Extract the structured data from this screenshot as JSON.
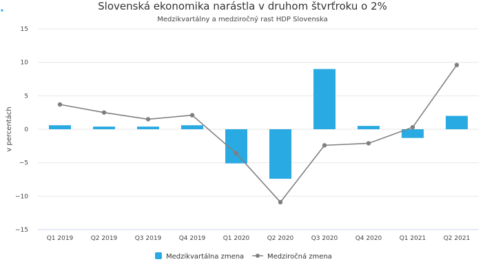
{
  "colors": {
    "bars": "#29aae2",
    "line": "#7f7f7f",
    "grid": "#e6e6e6",
    "axis": "#ccd6eb"
  },
  "chart_data": {
    "type": "bar",
    "title": "Slovenská ekonomika narástla v druhom štvrťroku o 2%",
    "subtitle": "Medzikvartálny a medziročný rast HDP Slovenska",
    "xlabel": "",
    "ylabel": "v percentách",
    "ylim": [
      -15,
      15
    ],
    "yticks": [
      15,
      10,
      5,
      0,
      -5,
      -10,
      -15
    ],
    "ytick_labels": [
      "15",
      "10",
      "5",
      "0",
      "−5",
      "−10",
      "−15"
    ],
    "grid": true,
    "legend_position": "bottom",
    "categories": [
      "Q1 2019",
      "Q2 2019",
      "Q3 2019",
      "Q4 2019",
      "Q1 2020",
      "Q2 2020",
      "Q3 2020",
      "Q4 2020",
      "Q1 2021",
      "Q2 2021"
    ],
    "series": [
      {
        "name": "Medzikvartálna zmena",
        "type": "bar",
        "values": [
          0.6,
          0.4,
          0.4,
          0.6,
          -5.1,
          -7.4,
          9.0,
          0.5,
          -1.3,
          2.0
        ]
      },
      {
        "name": "Medziročná zmena",
        "type": "line",
        "values": [
          3.7,
          2.5,
          1.5,
          2.1,
          -3.6,
          -10.9,
          -2.4,
          -2.1,
          0.3,
          9.6
        ]
      }
    ]
  }
}
